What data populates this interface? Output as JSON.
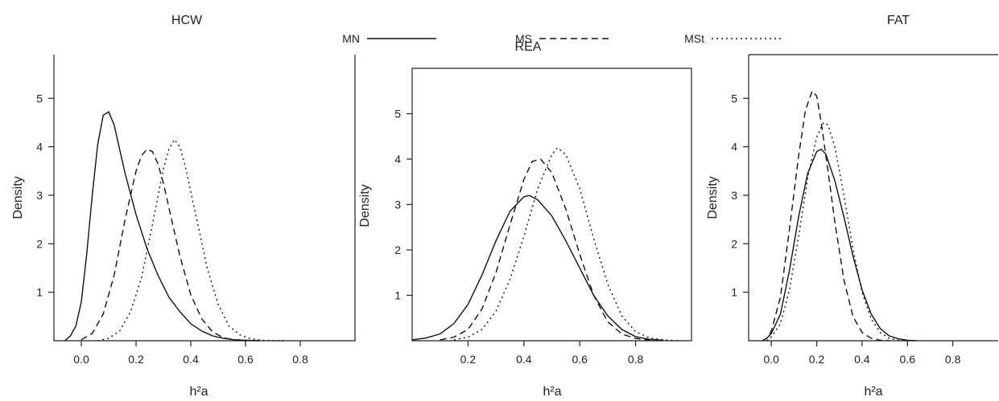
{
  "legend": [
    {
      "name": "MN",
      "dash": "solid"
    },
    {
      "name": "MS",
      "dash": "dashed"
    },
    {
      "name": "MSt",
      "dash": "dotted"
    }
  ],
  "chart_data": [
    {
      "type": "line",
      "title": "HCW",
      "xlabel": "h²a",
      "ylabel": "Density",
      "xlim": [
        -0.1,
        1.0
      ],
      "ylim": [
        0,
        5.9
      ],
      "xticks": [
        "0.0",
        "0.2",
        "0.4",
        "0.6",
        "0.8"
      ],
      "xtick_values": [
        0.0,
        0.2,
        0.4,
        0.6,
        0.8
      ],
      "yticks": [
        "1",
        "2",
        "3",
        "4",
        "5"
      ],
      "ytick_values": [
        1,
        2,
        3,
        4,
        5
      ],
      "frame": "box-open-top",
      "series": [
        {
          "name": "MN",
          "dash": "solid",
          "x": [
            -0.06,
            -0.04,
            -0.02,
            0.0,
            0.02,
            0.04,
            0.06,
            0.08,
            0.1,
            0.12,
            0.14,
            0.16,
            0.2,
            0.24,
            0.28,
            0.32,
            0.36,
            0.4,
            0.44,
            0.48,
            0.52,
            0.56,
            0.6,
            0.65
          ],
          "y": [
            0.0,
            0.1,
            0.3,
            0.8,
            1.8,
            3.0,
            4.05,
            4.65,
            4.72,
            4.45,
            3.95,
            3.45,
            2.6,
            1.9,
            1.35,
            0.9,
            0.6,
            0.35,
            0.2,
            0.1,
            0.05,
            0.02,
            0.01,
            0.0
          ]
        },
        {
          "name": "MS",
          "dash": "dashed",
          "x": [
            0.0,
            0.04,
            0.08,
            0.12,
            0.16,
            0.2,
            0.22,
            0.24,
            0.26,
            0.28,
            0.3,
            0.32,
            0.36,
            0.4,
            0.44,
            0.48,
            0.52,
            0.56,
            0.6,
            0.64
          ],
          "y": [
            0.02,
            0.15,
            0.55,
            1.35,
            2.5,
            3.5,
            3.82,
            3.95,
            3.9,
            3.65,
            3.25,
            2.75,
            1.75,
            0.95,
            0.45,
            0.18,
            0.06,
            0.02,
            0.01,
            0.0
          ]
        },
        {
          "name": "MSt",
          "dash": "dotted",
          "x": [
            0.06,
            0.1,
            0.14,
            0.18,
            0.22,
            0.26,
            0.3,
            0.32,
            0.34,
            0.36,
            0.38,
            0.42,
            0.46,
            0.5,
            0.54,
            0.58,
            0.62,
            0.66,
            0.7,
            0.74
          ],
          "y": [
            0.0,
            0.05,
            0.2,
            0.6,
            1.3,
            2.4,
            3.55,
            3.95,
            4.15,
            4.0,
            3.6,
            2.55,
            1.5,
            0.75,
            0.3,
            0.12,
            0.04,
            0.01,
            0.0,
            0.0
          ]
        }
      ]
    },
    {
      "type": "line",
      "title": "REA",
      "xlabel": "h²a",
      "ylabel": "Density",
      "xlim": [
        0.0,
        1.0
      ],
      "ylim": [
        0,
        6.0
      ],
      "xticks": [
        "0.2",
        "0.4",
        "0.6",
        "0.8"
      ],
      "xtick_values": [
        0.2,
        0.4,
        0.6,
        0.8
      ],
      "yticks": [
        "1",
        "2",
        "3",
        "4",
        "5"
      ],
      "ytick_values": [
        1,
        2,
        3,
        4,
        5
      ],
      "frame": "box",
      "series": [
        {
          "name": "MN",
          "dash": "solid",
          "x": [
            0.0,
            0.05,
            0.1,
            0.15,
            0.2,
            0.25,
            0.3,
            0.35,
            0.4,
            0.42,
            0.45,
            0.5,
            0.55,
            0.6,
            0.65,
            0.7,
            0.75,
            0.8,
            0.85,
            0.9
          ],
          "y": [
            0.02,
            0.06,
            0.15,
            0.38,
            0.8,
            1.45,
            2.2,
            2.85,
            3.17,
            3.2,
            3.1,
            2.75,
            2.2,
            1.6,
            1.0,
            0.55,
            0.25,
            0.09,
            0.03,
            0.01
          ]
        },
        {
          "name": "MS",
          "dash": "dashed",
          "x": [
            0.1,
            0.15,
            0.2,
            0.25,
            0.3,
            0.35,
            0.4,
            0.43,
            0.46,
            0.5,
            0.55,
            0.6,
            0.65,
            0.7,
            0.75,
            0.8,
            0.85
          ],
          "y": [
            0.02,
            0.08,
            0.25,
            0.7,
            1.5,
            2.55,
            3.55,
            3.95,
            4.0,
            3.7,
            2.9,
            1.9,
            1.0,
            0.42,
            0.15,
            0.05,
            0.01
          ]
        },
        {
          "name": "MSt",
          "dash": "dotted",
          "x": [
            0.15,
            0.2,
            0.25,
            0.3,
            0.35,
            0.4,
            0.45,
            0.5,
            0.52,
            0.55,
            0.6,
            0.65,
            0.7,
            0.75,
            0.8,
            0.85,
            0.9,
            0.95
          ],
          "y": [
            0.02,
            0.08,
            0.25,
            0.65,
            1.35,
            2.3,
            3.35,
            4.1,
            4.25,
            4.1,
            3.35,
            2.25,
            1.25,
            0.55,
            0.2,
            0.06,
            0.02,
            0.0
          ]
        }
      ]
    },
    {
      "type": "line",
      "title": "FAT",
      "xlabel": "h²a",
      "ylabel": "Density",
      "xlim": [
        -0.1,
        1.0
      ],
      "ylim": [
        0,
        5.9
      ],
      "xticks": [
        "0.0",
        "0.2",
        "0.4",
        "0.6",
        "0.8"
      ],
      "xtick_values": [
        0.0,
        0.2,
        0.4,
        0.6,
        0.8
      ],
      "yticks": [
        "1",
        "2",
        "3",
        "4",
        "5"
      ],
      "ytick_values": [
        1,
        2,
        3,
        4,
        5
      ],
      "frame": "box-open-top",
      "series": [
        {
          "name": "MN",
          "dash": "solid",
          "x": [
            -0.04,
            -0.02,
            0.0,
            0.04,
            0.08,
            0.12,
            0.16,
            0.2,
            0.22,
            0.24,
            0.28,
            0.32,
            0.36,
            0.4,
            0.44,
            0.48,
            0.52,
            0.56,
            0.6,
            0.64
          ],
          "y": [
            0.0,
            0.05,
            0.15,
            0.55,
            1.45,
            2.55,
            3.45,
            3.9,
            3.95,
            3.85,
            3.3,
            2.55,
            1.75,
            1.05,
            0.55,
            0.25,
            0.1,
            0.04,
            0.01,
            0.0
          ]
        },
        {
          "name": "MS",
          "dash": "dashed",
          "x": [
            -0.04,
            -0.02,
            0.0,
            0.04,
            0.08,
            0.12,
            0.15,
            0.18,
            0.2,
            0.22,
            0.25,
            0.28,
            0.32,
            0.36,
            0.4,
            0.44,
            0.48,
            0.52
          ],
          "y": [
            0.0,
            0.05,
            0.2,
            0.9,
            2.3,
            3.8,
            4.75,
            5.15,
            5.05,
            4.5,
            3.5,
            2.45,
            1.25,
            0.5,
            0.17,
            0.05,
            0.01,
            0.0
          ]
        },
        {
          "name": "MSt",
          "dash": "dotted",
          "x": [
            -0.02,
            0.0,
            0.04,
            0.08,
            0.12,
            0.16,
            0.2,
            0.23,
            0.25,
            0.28,
            0.32,
            0.36,
            0.4,
            0.44,
            0.48,
            0.52,
            0.56,
            0.6
          ],
          "y": [
            0.0,
            0.08,
            0.35,
            1.05,
            2.15,
            3.35,
            4.2,
            4.5,
            4.45,
            4.0,
            3.0,
            1.9,
            1.0,
            0.45,
            0.17,
            0.05,
            0.01,
            0.0
          ]
        }
      ]
    }
  ]
}
